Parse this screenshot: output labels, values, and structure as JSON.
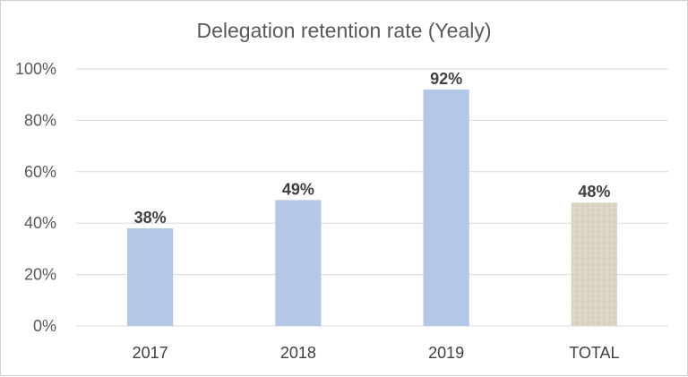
{
  "chart_data": {
    "type": "bar",
    "title": "Delegation retention rate (Yealy)",
    "categories": [
      "2017",
      "2018",
      "2019",
      "TOTAL"
    ],
    "values": [
      38,
      49,
      92,
      48
    ],
    "data_labels": [
      "38%",
      "49%",
      "92%",
      "48%"
    ],
    "ylim": [
      0,
      100
    ],
    "yticks": [
      0,
      20,
      40,
      60,
      80,
      100
    ],
    "ytick_labels": [
      "0%",
      "20%",
      "40%",
      "60%",
      "80%",
      "100%"
    ],
    "xlabel": "",
    "ylabel": "",
    "grid": true,
    "legend": "none",
    "bar_color": "#b4c7e7",
    "total_bar_color": "#ddd5c6",
    "gridline_color": "#d9d9d9"
  }
}
